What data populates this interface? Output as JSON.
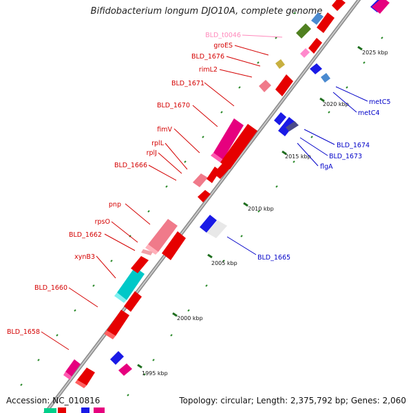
{
  "title": "Bifidobacterium longum DJO10A, complete genome",
  "accession": "Accession: NC_010816",
  "summary": "Topology: circular; Length: 2,375,792 bp; Genes: 2,060",
  "colors": {
    "forward_label": "#d40000",
    "reverse_label": "#0000c8",
    "trna_label": "#ff88bb",
    "backbone": "#a0a0a0",
    "tick": "#2a8a2a"
  },
  "scale_labels": [
    "1995 kbp",
    "2000 kbp",
    "2005 kbp",
    "2010 kbp",
    "2015 kbp",
    "2020 kbp",
    "2025 kbp"
  ],
  "left_labels": [
    "BLD_t0046",
    "groES",
    "BLD_1676",
    "rimL2",
    "BLD_1671",
    "BLD_1670",
    "fimV",
    "rplL",
    "rplJ",
    "BLD_1666",
    "pnp",
    "rpsO",
    "BLD_1662",
    "xynB3",
    "BLD_1660",
    "BLD_1658"
  ],
  "right_labels": [
    "metC5",
    "metC4",
    "BLD_1674",
    "BLD_1673",
    "flgA",
    "BLD_1665"
  ]
}
